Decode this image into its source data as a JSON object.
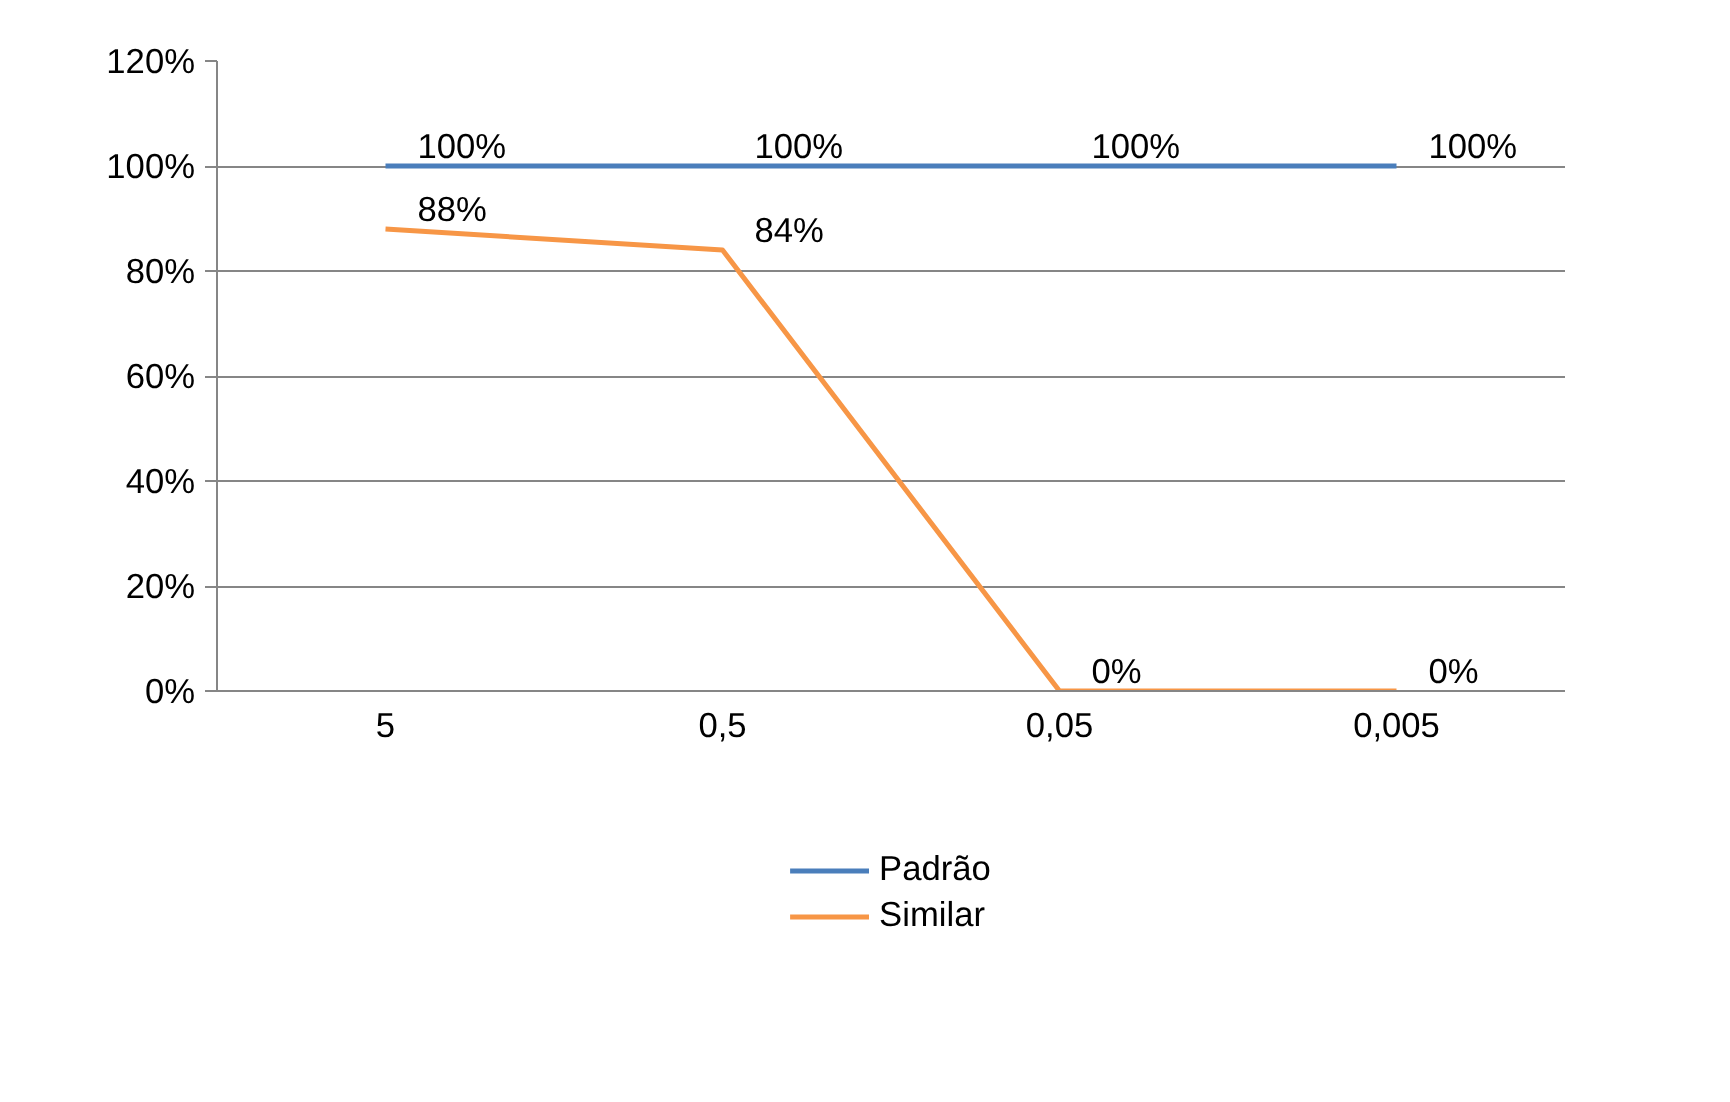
{
  "chart_data": {
    "type": "line",
    "categories": [
      "5",
      "0,5",
      "0,05",
      "0,005"
    ],
    "series": [
      {
        "name": "Padrão",
        "color": "#4a7ebb",
        "values": [
          100,
          100,
          100,
          100
        ],
        "value_labels": [
          "100%",
          "100%",
          "100%",
          "100%"
        ]
      },
      {
        "name": "Similar",
        "color": "#f79646",
        "values": [
          88,
          84,
          0,
          0
        ],
        "value_labels": [
          "88%",
          "84%",
          "0%",
          "0%"
        ]
      }
    ],
    "ylim": [
      0,
      120
    ],
    "yticks": [
      {
        "value": 0,
        "label": "0%"
      },
      {
        "value": 20,
        "label": "20%"
      },
      {
        "value": 40,
        "label": "40%"
      },
      {
        "value": 60,
        "label": "60%"
      },
      {
        "value": 80,
        "label": "80%"
      },
      {
        "value": 100,
        "label": "100%"
      },
      {
        "value": 120,
        "label": "120%"
      }
    ],
    "grid": "y",
    "legend": "bottom",
    "marker": "none",
    "line_style": "solid"
  }
}
